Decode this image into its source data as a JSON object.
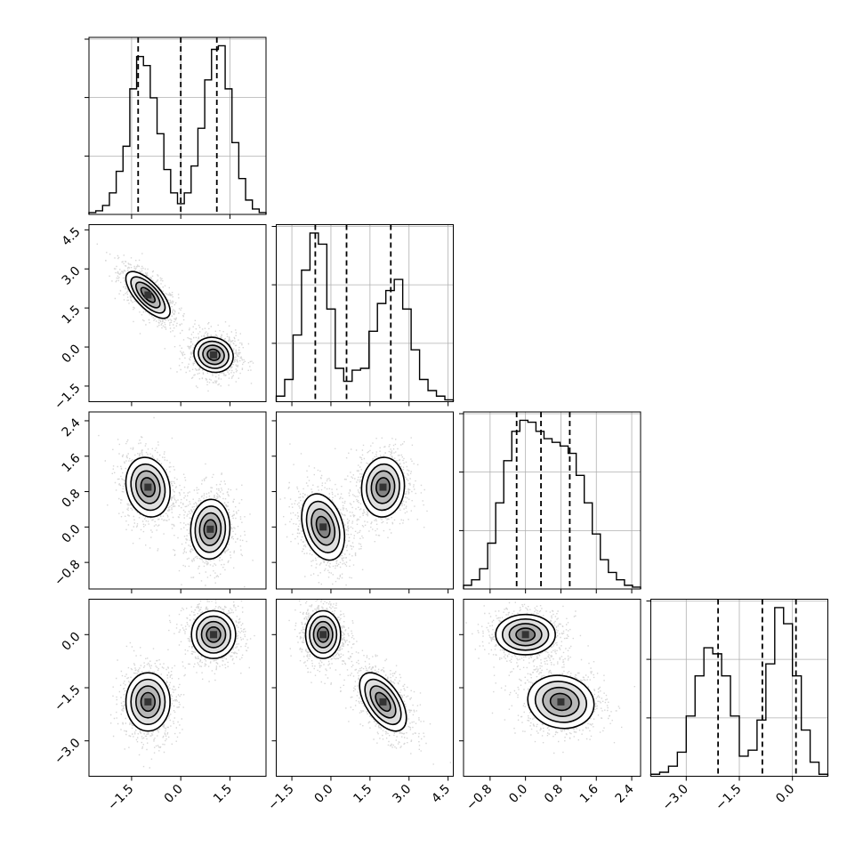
{
  "chart_data": {
    "type": "corner",
    "title": "",
    "grid": true,
    "colors": {
      "line": "#000000",
      "grid": "#b0b0b0",
      "points": "#8a8a8a"
    },
    "parameters": [
      {
        "index": 0,
        "range": [
          -2.8,
          2.6
        ],
        "ticks": [
          -1.5,
          0.0,
          1.5
        ],
        "tick_labels": [
          "-1.5",
          "0.0",
          "1.5"
        ]
      },
      {
        "index": 1,
        "range": [
          -2.1,
          4.7
        ],
        "ticks": [
          -1.5,
          0.0,
          1.5,
          3.0,
          4.5
        ],
        "tick_labels": [
          "-1.5",
          "0.0",
          "1.5",
          "3.0",
          "4.5"
        ]
      },
      {
        "index": 2,
        "range": [
          -1.4,
          2.6
        ],
        "ticks": [
          -0.8,
          0.0,
          0.8,
          1.6,
          2.4
        ],
        "tick_labels": [
          "-0.8",
          "0.0",
          "0.8",
          "1.6",
          "2.4"
        ]
      },
      {
        "index": 3,
        "range": [
          -4.0,
          1.0
        ],
        "ticks": [
          -3.0,
          -1.5,
          0.0
        ],
        "tick_labels": [
          "-3.0",
          "-1.5",
          "0.0"
        ]
      }
    ],
    "marginals": [
      {
        "param": 0,
        "bin_edges_range": [
          -2.8,
          2.6
        ],
        "counts": [
          0.01,
          0.02,
          0.05,
          0.12,
          0.24,
          0.38,
          0.7,
          0.88,
          0.83,
          0.65,
          0.45,
          0.25,
          0.12,
          0.06,
          0.12,
          0.27,
          0.48,
          0.75,
          0.92,
          0.94,
          0.7,
          0.4,
          0.2,
          0.08,
          0.03,
          0.01
        ],
        "quantiles": [
          -1.3,
          0.0,
          1.1
        ]
      },
      {
        "param": 1,
        "bin_edges_range": [
          -2.1,
          4.7
        ],
        "counts": [
          0.03,
          0.12,
          0.36,
          0.71,
          0.91,
          0.85,
          0.5,
          0.18,
          0.11,
          0.17,
          0.18,
          0.38,
          0.53,
          0.6,
          0.66,
          0.5,
          0.28,
          0.12,
          0.06,
          0.03,
          0.01
        ],
        "quantiles": [
          -0.6,
          0.6,
          2.3
        ]
      },
      {
        "param": 2,
        "bin_edges_range": [
          -1.4,
          2.6
        ],
        "counts": [
          0.02,
          0.05,
          0.11,
          0.25,
          0.47,
          0.7,
          0.86,
          0.92,
          0.91,
          0.86,
          0.82,
          0.8,
          0.78,
          0.74,
          0.62,
          0.47,
          0.3,
          0.16,
          0.09,
          0.05,
          0.02,
          0.01
        ],
        "quantiles": [
          -0.2,
          0.35,
          1.0
        ]
      },
      {
        "param": 3,
        "bin_edges_range": [
          -4.0,
          1.0
        ],
        "counts": [
          0.01,
          0.02,
          0.05,
          0.12,
          0.3,
          0.5,
          0.64,
          0.61,
          0.5,
          0.3,
          0.1,
          0.13,
          0.28,
          0.56,
          0.84,
          0.76,
          0.5,
          0.23,
          0.07,
          0.01
        ],
        "quantiles": [
          -2.1,
          -0.85,
          0.1
        ]
      }
    ],
    "pairs": [
      {
        "x": 0,
        "y": 1,
        "modes": [
          {
            "mx": -1.0,
            "my": 2.0,
            "sx": 0.45,
            "sy": 0.6,
            "rho": -0.7,
            "w": 0.5
          },
          {
            "mx": 1.0,
            "my": -0.3,
            "sx": 0.4,
            "sy": 0.45,
            "rho": -0.1,
            "w": 0.5
          }
        ]
      },
      {
        "x": 0,
        "y": 2,
        "modes": [
          {
            "mx": -1.0,
            "my": 0.9,
            "sx": 0.45,
            "sy": 0.45,
            "rho": -0.15,
            "w": 0.5
          },
          {
            "mx": 0.9,
            "my": -0.05,
            "sx": 0.4,
            "sy": 0.45,
            "rho": 0.05,
            "w": 0.5
          }
        ]
      },
      {
        "x": 0,
        "y": 3,
        "modes": [
          {
            "mx": -1.0,
            "my": -1.9,
            "sx": 0.45,
            "sy": 0.55,
            "rho": 0.0,
            "w": 0.5
          },
          {
            "mx": 1.0,
            "my": 0.0,
            "sx": 0.45,
            "sy": 0.45,
            "rho": 0.0,
            "w": 0.5
          }
        ]
      },
      {
        "x": 1,
        "y": 2,
        "modes": [
          {
            "mx": -0.3,
            "my": 0.0,
            "sx": 0.55,
            "sy": 0.5,
            "rho": -0.3,
            "w": 0.5
          },
          {
            "mx": 2.0,
            "my": 0.9,
            "sx": 0.55,
            "sy": 0.45,
            "rho": 0.05,
            "w": 0.5
          }
        ]
      },
      {
        "x": 1,
        "y": 3,
        "modes": [
          {
            "mx": -0.3,
            "my": 0.0,
            "sx": 0.45,
            "sy": 0.45,
            "rho": 0.0,
            "w": 0.5
          },
          {
            "mx": 2.0,
            "my": -1.9,
            "sx": 0.6,
            "sy": 0.55,
            "rho": -0.55,
            "w": 0.5
          }
        ]
      },
      {
        "x": 2,
        "y": 3,
        "modes": [
          {
            "mx": 0.0,
            "my": 0.0,
            "sx": 0.45,
            "sy": 0.38,
            "rho": 0.0,
            "w": 0.5
          },
          {
            "mx": 0.8,
            "my": -1.9,
            "sx": 0.5,
            "sy": 0.5,
            "rho": -0.1,
            "w": 0.5
          }
        ]
      }
    ],
    "contour_levels": [
      0.12,
      0.36,
      0.62,
      0.84
    ],
    "contour_fill_grays": [
      "#ffffff",
      "#d9d9d9",
      "#b0b0b0",
      "#7a7a7a",
      "#333333"
    ]
  }
}
